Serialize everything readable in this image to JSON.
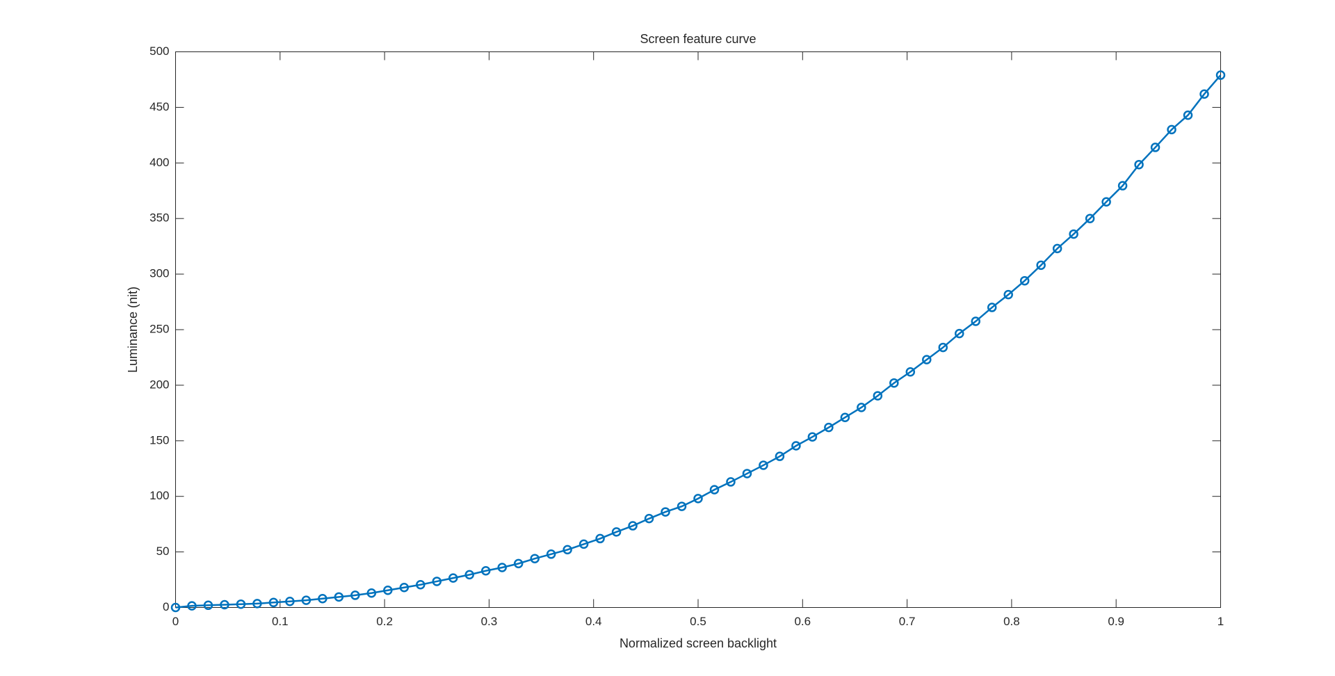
{
  "chart_data": {
    "type": "line",
    "title": "Screen feature curve",
    "xlabel": "Normalized screen backlight",
    "ylabel": "Luminance (nit)",
    "x": [
      0,
      0.015625,
      0.03125,
      0.046875,
      0.0625,
      0.078125,
      0.09375,
      0.109375,
      0.125,
      0.140625,
      0.15625,
      0.171875,
      0.1875,
      0.203125,
      0.21875,
      0.234375,
      0.25,
      0.265625,
      0.28125,
      0.296875,
      0.3125,
      0.328125,
      0.34375,
      0.359375,
      0.375,
      0.390625,
      0.40625,
      0.421875,
      0.4375,
      0.453125,
      0.46875,
      0.484375,
      0.5,
      0.515625,
      0.53125,
      0.546875,
      0.5625,
      0.578125,
      0.59375,
      0.609375,
      0.625,
      0.640625,
      0.65625,
      0.671875,
      0.6875,
      0.703125,
      0.71875,
      0.734375,
      0.75,
      0.765625,
      0.78125,
      0.796875,
      0.8125,
      0.828125,
      0.84375,
      0.859375,
      0.875,
      0.890625,
      0.90625,
      0.921875,
      0.9375,
      0.953125,
      0.96875,
      0.984375,
      1
    ],
    "series": [
      {
        "name": "Luminance",
        "color": "#0072bd",
        "values": [
          0,
          1.5,
          2,
          2.5,
          3,
          3.5,
          4.5,
          5.5,
          6.5,
          8,
          9.5,
          11,
          13,
          15.5,
          18,
          20.5,
          23.5,
          26.5,
          29.5,
          33,
          36,
          39.5,
          44,
          48,
          52,
          57,
          62,
          68,
          73.5,
          80,
          86,
          91,
          98,
          106,
          113,
          120.5,
          128,
          136,
          145.5,
          153.5,
          162,
          171,
          180,
          190.5,
          202,
          212,
          223,
          234,
          246.5,
          257.5,
          270,
          281.5,
          294,
          308,
          323,
          336,
          350,
          365,
          379.5,
          398.5,
          414,
          430,
          443,
          462,
          479
        ]
      }
    ],
    "xlim": [
      0,
      1
    ],
    "xticks": [
      0,
      0.1,
      0.2,
      0.3,
      0.4,
      0.5,
      0.6,
      0.7,
      0.8,
      0.9,
      1
    ],
    "ylim": [
      0,
      500
    ],
    "yticks": [
      0,
      50,
      100,
      150,
      200,
      250,
      300,
      350,
      400,
      450,
      500
    ],
    "grid": false
  }
}
